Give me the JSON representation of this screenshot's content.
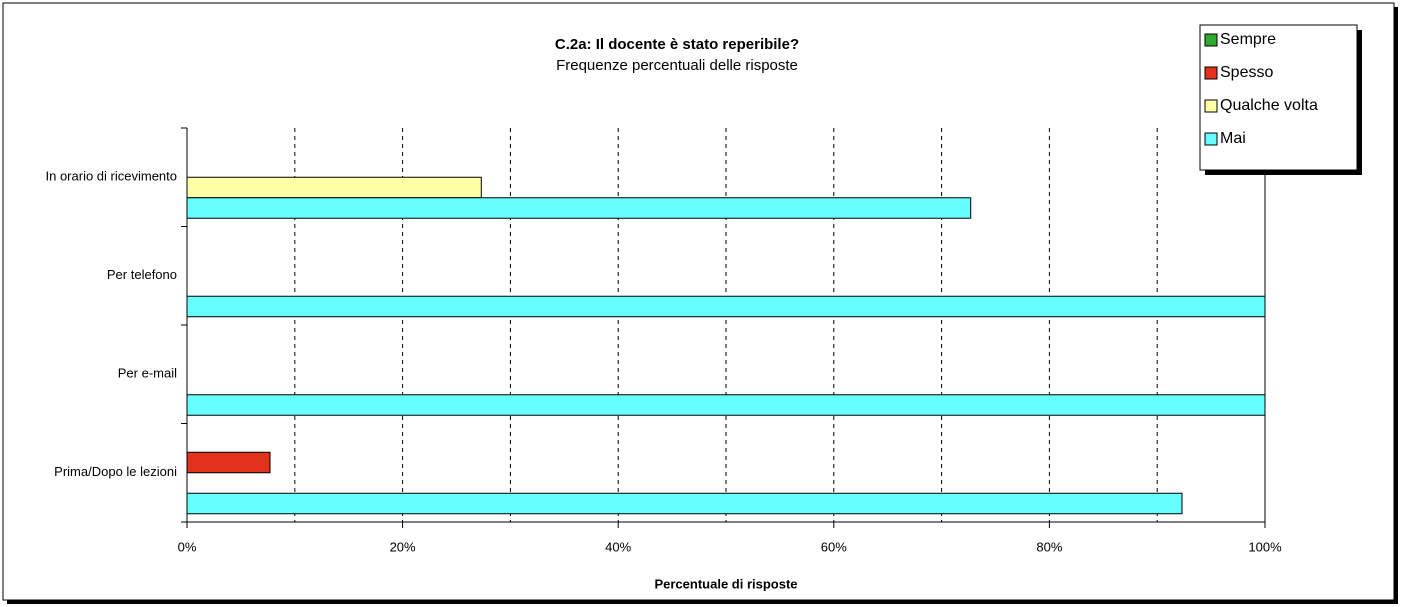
{
  "chart_data": {
    "type": "hbar",
    "title": "C.2a: Il docente è stato reperibile?",
    "subtitle": "Frequenze percentuali delle risposte",
    "x_label": "Percentuale di risposte",
    "categories": [
      "In orario di ricevimento",
      "Per telefono",
      "Per e-mail",
      "Prima/Dopo le lezioni"
    ],
    "series": [
      {
        "name": "Sempre",
        "color": "#2eaa2e",
        "values": [
          0,
          0,
          0,
          0
        ]
      },
      {
        "name": "Spesso",
        "color": "#e2321c",
        "values": [
          0,
          0,
          0,
          7.7
        ]
      },
      {
        "name": "Qualche volta",
        "color": "#ffffa6",
        "values": [
          27.3,
          0,
          0,
          0
        ]
      },
      {
        "name": "Mai",
        "color": "#66ffff",
        "values": [
          72.7,
          100,
          100,
          92.3
        ]
      }
    ],
    "xlim": [
      0,
      100
    ],
    "xticks": [
      {
        "value": 0,
        "label": "0%"
      },
      {
        "value": 20,
        "label": "20%"
      },
      {
        "value": 40,
        "label": "40%"
      },
      {
        "value": 60,
        "label": "60%"
      },
      {
        "value": 80,
        "label": "80%"
      },
      {
        "value": 100,
        "label": "100%"
      }
    ],
    "minor_xticks": [
      10,
      30,
      50,
      70,
      90
    ],
    "grid": true,
    "legend": "top-right"
  }
}
